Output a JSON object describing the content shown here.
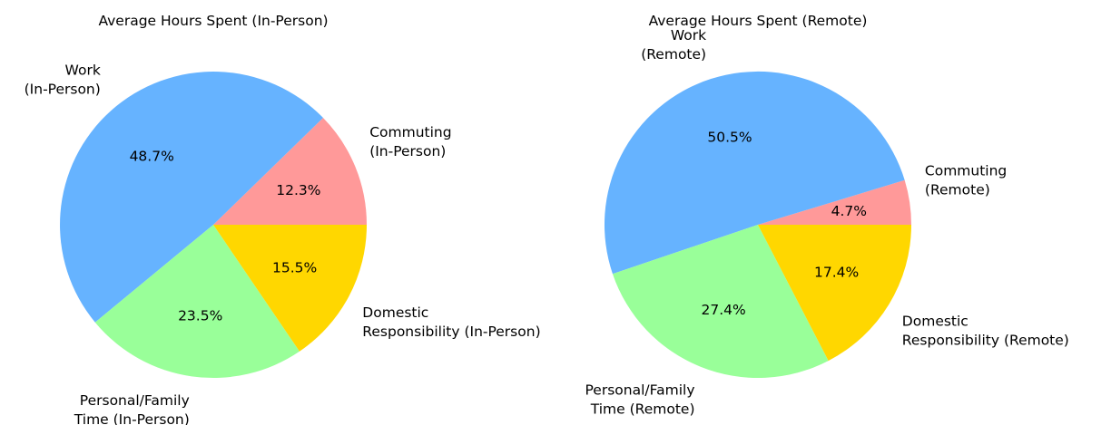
{
  "chart_data": [
    {
      "type": "pie",
      "title": "Average Hours Spent (In-Person)",
      "start_angle_deg": 0,
      "direction": "counterclockwise",
      "slices": [
        {
          "label": "Commuting\n(In-Person)",
          "value": 12.3,
          "pct_label": "12.3%",
          "color": "#ff9999"
        },
        {
          "label": "Work\n(In-Person)",
          "value": 48.7,
          "pct_label": "48.7%",
          "color": "#66b3ff"
        },
        {
          "label": "Personal/Family\nTime (In-Person)",
          "value": 23.5,
          "pct_label": "23.5%",
          "color": "#99ff99"
        },
        {
          "label": "Domestic\nResponsibility (In-Person)",
          "value": 15.5,
          "pct_label": "15.5%",
          "color": "#ffd700"
        }
      ]
    },
    {
      "type": "pie",
      "title": "Average Hours Spent (Remote)",
      "start_angle_deg": 0,
      "direction": "counterclockwise",
      "slices": [
        {
          "label": "Commuting\n(Remote)",
          "value": 4.7,
          "pct_label": "4.7%",
          "color": "#ff9999"
        },
        {
          "label": "Work\n(Remote)",
          "value": 50.5,
          "pct_label": "50.5%",
          "color": "#66b3ff"
        },
        {
          "label": "Personal/Family\nTime (Remote)",
          "value": 27.4,
          "pct_label": "27.4%",
          "color": "#99ff99"
        },
        {
          "label": "Domestic\nResponsibility (Remote)",
          "value": 17.4,
          "pct_label": "17.4%",
          "color": "#ffd700"
        }
      ]
    }
  ]
}
